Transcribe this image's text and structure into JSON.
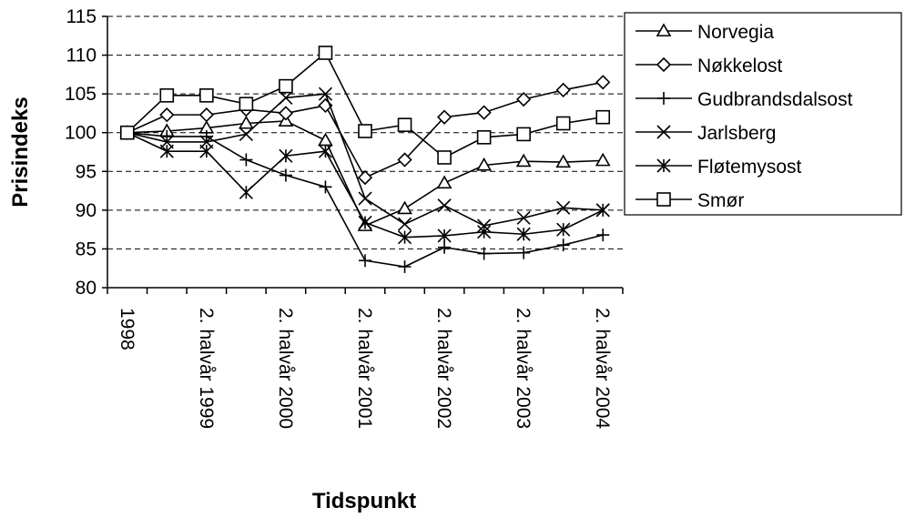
{
  "chart_data": {
    "type": "line",
    "title": "",
    "xlabel": "Tidspunkt",
    "ylabel": "Prisindeks",
    "ylim": [
      80,
      115
    ],
    "y_ticks": [
      80,
      85,
      90,
      95,
      100,
      105,
      110,
      115
    ],
    "grid": true,
    "legend_position": "right",
    "x_tick_labels": [
      "1998",
      "2. halvår 1999",
      "2. halvår 2000",
      "2. halvår 2001",
      "2. halvår 2002",
      "2. halvår 2003",
      "2. halvår 2004"
    ],
    "x_points": 13,
    "series": [
      {
        "name": "Norvegia",
        "marker": "triangle",
        "values": [
          100,
          100.2,
          100.6,
          101.2,
          101.5,
          99.0,
          88.0,
          90.2,
          93.5,
          95.8,
          96.3,
          96.2,
          96.4
        ]
      },
      {
        "name": "Nøkkelost",
        "marker": "diamond",
        "values": [
          100,
          102.3,
          102.3,
          103.0,
          102.5,
          103.5,
          94.2,
          96.5,
          102.0,
          102.6,
          104.3,
          105.5,
          106.5
        ]
      },
      {
        "name": "Gudbrandsdalsost",
        "marker": "plus",
        "values": [
          100,
          99.5,
          99.5,
          96.5,
          94.5,
          93.0,
          83.5,
          82.7,
          85.2,
          84.4,
          84.5,
          85.5,
          86.8
        ]
      },
      {
        "name": "Jarlsberg",
        "marker": "x",
        "values": [
          100,
          98.8,
          98.8,
          99.8,
          104.5,
          105.0,
          91.5,
          88.2,
          90.6,
          88.0,
          89.0,
          90.3,
          90.0
        ]
      },
      {
        "name": "Fløtemysost",
        "marker": "asterisk",
        "values": [
          100,
          97.6,
          97.6,
          92.3,
          97.0,
          97.6,
          88.4,
          86.5,
          86.7,
          87.2,
          86.9,
          87.5,
          90.0
        ]
      },
      {
        "name": "Smør",
        "marker": "square",
        "values": [
          100,
          104.8,
          104.8,
          103.7,
          106.0,
          110.3,
          100.2,
          101.0,
          96.8,
          99.4,
          99.8,
          101.2,
          102.0
        ]
      }
    ]
  }
}
